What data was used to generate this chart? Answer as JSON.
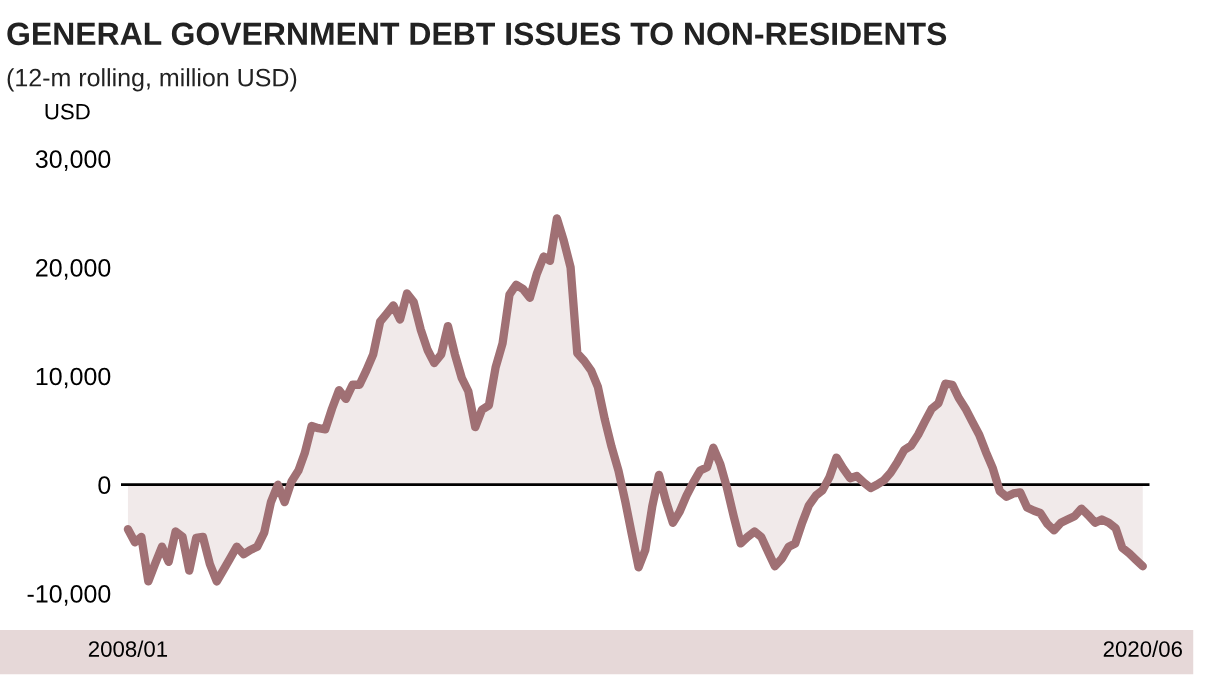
{
  "chart_data": {
    "type": "area",
    "title": "GENERAL GOVERNMENT DEBT ISSUES TO NON-RESIDENTS",
    "subtitle": "(12-m rolling, million USD)",
    "ylabel": "USD",
    "x": [
      "2008-01",
      "2008-02",
      "2008-03",
      "2008-04",
      "2008-05",
      "2008-06",
      "2008-07",
      "2008-08",
      "2008-09",
      "2008-10",
      "2008-11",
      "2008-12",
      "2009-01",
      "2009-02",
      "2009-03",
      "2009-04",
      "2009-05",
      "2009-06",
      "2009-07",
      "2009-08",
      "2009-09",
      "2009-10",
      "2009-11",
      "2009-12",
      "2010-01",
      "2010-02",
      "2010-03",
      "2010-04",
      "2010-05",
      "2010-06",
      "2010-07",
      "2010-08",
      "2010-09",
      "2010-10",
      "2010-11",
      "2010-12",
      "2011-01",
      "2011-02",
      "2011-03",
      "2011-04",
      "2011-05",
      "2011-06",
      "2011-07",
      "2011-08",
      "2011-09",
      "2011-10",
      "2011-11",
      "2011-12",
      "2012-01",
      "2012-02",
      "2012-03",
      "2012-04",
      "2012-05",
      "2012-06",
      "2012-07",
      "2012-08",
      "2012-09",
      "2012-10",
      "2012-11",
      "2012-12",
      "2013-01",
      "2013-02",
      "2013-03",
      "2013-04",
      "2013-05",
      "2013-06",
      "2013-07",
      "2013-08",
      "2013-09",
      "2013-10",
      "2013-11",
      "2013-12",
      "2014-01",
      "2014-02",
      "2014-03",
      "2014-04",
      "2014-05",
      "2014-06",
      "2014-07",
      "2014-08",
      "2014-09",
      "2014-10",
      "2014-11",
      "2014-12",
      "2015-01",
      "2015-02",
      "2015-03",
      "2015-04",
      "2015-05",
      "2015-06",
      "2015-07",
      "2015-08",
      "2015-09",
      "2015-10",
      "2015-11",
      "2015-12",
      "2016-01",
      "2016-02",
      "2016-03",
      "2016-04",
      "2016-05",
      "2016-06",
      "2016-07",
      "2016-08",
      "2016-09",
      "2016-10",
      "2016-11",
      "2016-12",
      "2017-01",
      "2017-02",
      "2017-03",
      "2017-04",
      "2017-05",
      "2017-06",
      "2017-07",
      "2017-08",
      "2017-09",
      "2017-10",
      "2017-11",
      "2017-12",
      "2018-01",
      "2018-02",
      "2018-03",
      "2018-04",
      "2018-05",
      "2018-06",
      "2018-07",
      "2018-08",
      "2018-09",
      "2018-10",
      "2018-11",
      "2018-12",
      "2019-01",
      "2019-02",
      "2019-03",
      "2019-04",
      "2019-05",
      "2019-06",
      "2019-07",
      "2019-08",
      "2019-09",
      "2019-10",
      "2019-11",
      "2019-12",
      "2020-01",
      "2020-02",
      "2020-03",
      "2020-04",
      "2020-05",
      "2020-06"
    ],
    "color": "#a07074",
    "values": [
      -4100,
      -5300,
      -4800,
      -8900,
      -7300,
      -5700,
      -7100,
      -4300,
      -4800,
      -7900,
      -4900,
      -4800,
      -7300,
      -8900,
      -7900,
      -6800,
      -5700,
      -6400,
      -6000,
      -5700,
      -4400,
      -1600,
      0,
      -1600,
      300,
      1300,
      2900,
      5400,
      5200,
      5100,
      7000,
      8700,
      7900,
      9200,
      9200,
      10500,
      12000,
      15000,
      15700,
      16500,
      15200,
      17600,
      16800,
      14300,
      12400,
      11200,
      12000,
      14600,
      12000,
      9800,
      8600,
      5300,
      6900,
      7300,
      10800,
      13000,
      17500,
      18400,
      18000,
      17200,
      19400,
      21000,
      20600,
      24500,
      22500,
      20000,
      12100,
      11400,
      10500,
      9000,
      6000,
      3500,
      1300,
      -1600,
      -4500,
      -7600,
      -6000,
      -2000,
      900,
      -1500,
      -3500,
      -2500,
      -1000,
      200,
      1300,
      1600,
      3400,
      1900,
      -300,
      -3000,
      -5400,
      -4800,
      -4300,
      -4800,
      -6200,
      -7500,
      -6800,
      -5700,
      -5400,
      -3500,
      -1900,
      -1000,
      -500,
      700,
      2500,
      1500,
      600,
      800,
      200,
      -300,
      0,
      400,
      1100,
      2100,
      3200,
      3600,
      4600,
      5800,
      7000,
      7500,
      9300,
      9200,
      8000,
      7000,
      5800,
      4600,
      3000,
      1500,
      -600,
      -1100,
      -800,
      -700,
      -2100,
      -2400,
      -2600,
      -3600,
      -4200,
      -3500,
      -3200,
      -2900,
      -2200,
      -2800,
      -3500,
      -3200,
      -3500,
      -4000,
      -5800,
      -6300,
      -6900,
      -7500
    ],
    "xticks": [
      {
        "value": "2008-01",
        "label": "2008/01"
      },
      {
        "value": "2020-06",
        "label": "2020/06"
      }
    ],
    "ylim": [
      -10000,
      30000
    ],
    "xlim": [
      "2007-12",
      "2020-07"
    ],
    "yticks": [
      {
        "value": 30000,
        "label": "30,000"
      },
      {
        "value": 20000,
        "label": "20,000"
      },
      {
        "value": 10000,
        "label": "10,000"
      },
      {
        "value": 0,
        "label": "0"
      },
      {
        "value": -10000,
        "label": "-10,000"
      }
    ],
    "ref_lines": [
      {
        "axis": "y",
        "value": 0,
        "color": "#000000"
      }
    ],
    "grid": false
  }
}
